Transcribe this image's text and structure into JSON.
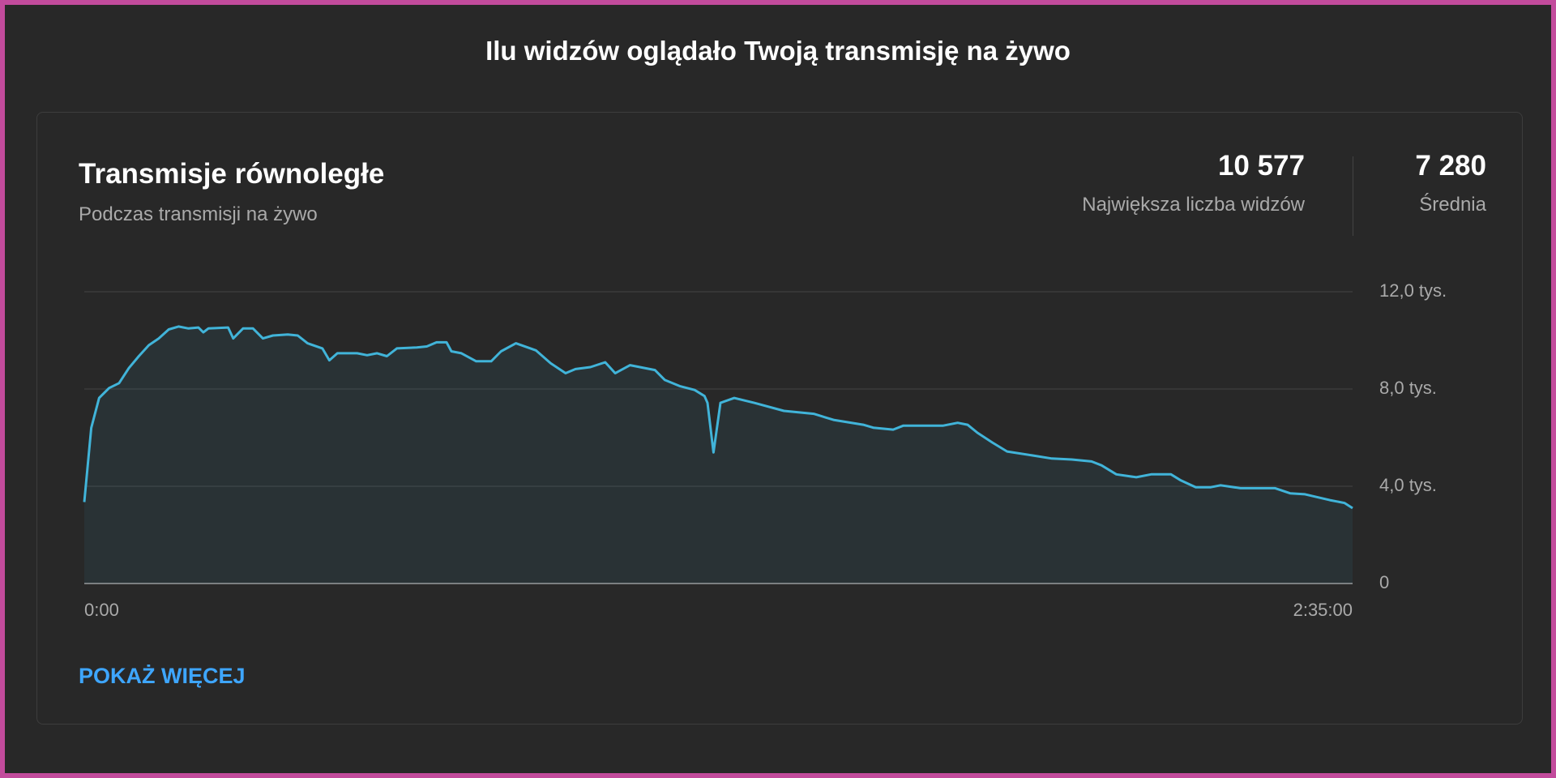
{
  "title": "Ilu widzów oglądało Twoją transmisję na żywo",
  "card": {
    "title": "Transmisje równoległe",
    "subtitle": "Podczas transmisji na żywo",
    "stats": [
      {
        "value": "10 577",
        "label": "Największa liczba widzów"
      },
      {
        "value": "7 280",
        "label": "Średnia"
      }
    ],
    "button": "POKAŻ WIĘCEJ"
  },
  "chart_data": {
    "type": "area",
    "color": "#41b4d9",
    "grid": true,
    "x": [
      0,
      51,
      109,
      182,
      255,
      327,
      400,
      473,
      546,
      619,
      691,
      764,
      837,
      873,
      910,
      1055,
      1092,
      1164,
      1237,
      1310,
      1383,
      1492,
      1565,
      1637,
      1746,
      1797,
      1856,
      2001,
      2074,
      2147,
      2219,
      2292,
      2438,
      2511,
      2583,
      2656,
      2692,
      2765,
      2874,
      2984,
      3056,
      3165,
      3311,
      3420,
      3529,
      3602,
      3711,
      3820,
      3893,
      4002,
      4184,
      4257,
      4366,
      4475,
      4548,
      4570,
      4614,
      4665,
      4766,
      4912,
      5130,
      5349,
      5494,
      5712,
      5785,
      5931,
      6004,
      6295,
      6404,
      6477,
      6549,
      6658,
      6767,
      6949,
      7095,
      7241,
      7386,
      7459,
      7568,
      7714,
      7823,
      7968,
      8041,
      8150,
      8260,
      8332,
      8478,
      8732,
      8842,
      8951,
      9133,
      9242,
      9300
    ],
    "values": [
      3350,
      6400,
      7630,
      8040,
      8240,
      8860,
      9350,
      9800,
      10080,
      10450,
      10570,
      10490,
      10530,
      10330,
      10490,
      10530,
      10080,
      10490,
      10490,
      10080,
      10200,
      10240,
      10200,
      9880,
      9670,
      9180,
      9470,
      9470,
      9390,
      9470,
      9350,
      9670,
      9710,
      9750,
      9920,
      9920,
      9550,
      9470,
      9140,
      9140,
      9550,
      9880,
      9590,
      9060,
      8650,
      8820,
      8900,
      9100,
      8650,
      8980,
      8780,
      8370,
      8120,
      7960,
      7710,
      7430,
      5390,
      7430,
      7630,
      7430,
      7100,
      6980,
      6730,
      6530,
      6410,
      6330,
      6490,
      6490,
      6610,
      6530,
      6200,
      5800,
      5430,
      5270,
      5140,
      5100,
      5020,
      4860,
      4490,
      4370,
      4490,
      4490,
      4240,
      3960,
      3960,
      4040,
      3920,
      3920,
      3710,
      3670,
      3430,
      3310,
      3100
    ],
    "xlim": [
      0,
      9300
    ],
    "xticks": [
      {
        "value": 0,
        "label": "0:00"
      },
      {
        "value": 9300,
        "label": "2:35:00"
      }
    ],
    "ylim": [
      0,
      12000
    ],
    "yticks": [
      0,
      {
        "value": 4000,
        "label": "4,0 tys."
      },
      {
        "value": 8000,
        "label": "8,0 tys."
      },
      {
        "value": 12000,
        "label": "12,0 tys."
      }
    ]
  }
}
